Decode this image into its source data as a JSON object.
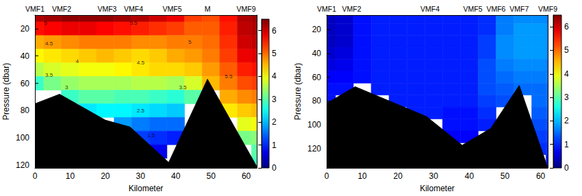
{
  "chart_data": [
    {
      "type": "contour",
      "x_label": "Kilometer",
      "y_label": "Pressure (dbar)",
      "xlim": [
        0,
        63
      ],
      "xticks": [
        0,
        10,
        20,
        30,
        40,
        50,
        60
      ],
      "ylim": [
        10,
        122
      ],
      "yticks": [
        20,
        40,
        60,
        80,
        100,
        120
      ],
      "stations": [
        {
          "name": "VMF1",
          "x": 0
        },
        {
          "name": "VMF2",
          "x": 7.6
        },
        {
          "name": "VMF3",
          "x": 20.5
        },
        {
          "name": "VMF4",
          "x": 28
        },
        {
          "name": "VMF5",
          "x": 39
        },
        {
          "name": "M",
          "x": 49
        },
        {
          "name": "VMF9",
          "x": 60
        }
      ],
      "seabed": {
        "x": [
          0,
          7,
          20,
          27,
          38,
          49,
          63
        ],
        "y": [
          75,
          68,
          87,
          92,
          118,
          57,
          121
        ]
      },
      "cells": {
        "x": [
          0,
          5,
          10,
          15,
          20,
          25,
          30,
          35,
          40,
          45,
          50,
          55,
          60,
          63
        ],
        "y": [
          10,
          20,
          30,
          40,
          50,
          60,
          70,
          80,
          90,
          100,
          110,
          120
        ],
        "values": [
          [
            6.2,
            6.3,
            6.4,
            6.4,
            6.4,
            6.3,
            6.2,
            6.0,
            5.8,
            5.3,
            5.2,
            5.6,
            6.2,
            6.3
          ],
          [
            5.6,
            5.7,
            5.8,
            5.8,
            5.7,
            5.6,
            5.5,
            5.4,
            5.3,
            5.1,
            5.1,
            5.5,
            6.1,
            6.2
          ],
          [
            4.6,
            4.7,
            4.8,
            4.9,
            4.9,
            4.9,
            4.8,
            4.8,
            4.9,
            4.9,
            5.0,
            5.4,
            6.0,
            6.1
          ],
          [
            4.1,
            4.2,
            4.3,
            4.4,
            4.5,
            4.4,
            4.3,
            4.4,
            4.6,
            4.7,
            4.9,
            5.3,
            5.8,
            5.9
          ],
          [
            3.6,
            3.8,
            3.9,
            4.0,
            4.0,
            4.1,
            4.2,
            4.3,
            4.3,
            4.4,
            4.7,
            5.1,
            5.5,
            5.6
          ],
          [
            2.8,
            3.2,
            3.4,
            3.5,
            3.5,
            3.5,
            3.6,
            3.6,
            3.5,
            3.8,
            4.5,
            4.9,
            5.2,
            5.3
          ],
          [
            null,
            null,
            2.8,
            3.0,
            3.0,
            2.9,
            2.9,
            2.8,
            2.7,
            3.0,
            null,
            4.6,
            4.8,
            4.9
          ],
          [
            null,
            null,
            null,
            2.3,
            2.4,
            2.4,
            2.3,
            2.2,
            2.1,
            null,
            null,
            4.2,
            4.4,
            4.5
          ],
          [
            null,
            null,
            null,
            null,
            null,
            1.8,
            1.6,
            1.5,
            1.5,
            null,
            null,
            null,
            3.9,
            4.0
          ],
          [
            null,
            null,
            null,
            null,
            null,
            null,
            1.2,
            1.1,
            1.0,
            null,
            null,
            null,
            3.2,
            3.3
          ],
          [
            null,
            null,
            null,
            null,
            null,
            null,
            null,
            0.7,
            null,
            null,
            null,
            null,
            null,
            3.0
          ],
          [
            null,
            null,
            null,
            null,
            null,
            null,
            null,
            null,
            null,
            null,
            null,
            null,
            null,
            2.8
          ]
        ]
      },
      "colorbar": {
        "range": [
          0,
          6.5
        ],
        "ticks": [
          0,
          1,
          2,
          3,
          4,
          5,
          6
        ]
      },
      "annotations": [
        {
          "text": "5",
          "x": 3,
          "y": 16
        },
        {
          "text": "4.5",
          "x": 4,
          "y": 31
        },
        {
          "text": "4",
          "x": 12,
          "y": 44
        },
        {
          "text": "3.5",
          "x": 4,
          "y": 54
        },
        {
          "text": "3",
          "x": 9,
          "y": 63
        },
        {
          "text": "5.5",
          "x": 28,
          "y": 16
        },
        {
          "text": "4.5",
          "x": 30,
          "y": 45
        },
        {
          "text": "3.5",
          "x": 42,
          "y": 63
        },
        {
          "text": "2.5",
          "x": 30,
          "y": 80
        },
        {
          "text": "1.5",
          "x": 33,
          "y": 98
        },
        {
          "text": "5",
          "x": 44,
          "y": 30
        },
        {
          "text": "5.5",
          "x": 55,
          "y": 55
        }
      ]
    },
    {
      "type": "contour",
      "x_label": "Kilometer",
      "y_label": "Pressure (dbar)",
      "xlim": [
        0,
        62
      ],
      "xticks": [
        0,
        10,
        20,
        30,
        40,
        50,
        60
      ],
      "ylim": [
        8,
        136
      ],
      "yticks": [
        20,
        40,
        60,
        80,
        100,
        120
      ],
      "stations": [
        {
          "name": "VMF1",
          "x": 0
        },
        {
          "name": "VMF2",
          "x": 7
        },
        {
          "name": "VMF4",
          "x": 29
        },
        {
          "name": "VMF5",
          "x": 41
        },
        {
          "name": "VMF6",
          "x": 47.5
        },
        {
          "name": "VMF7",
          "x": 54
        },
        {
          "name": "VMF9",
          "x": 62
        }
      ],
      "seabed": {
        "x": [
          0,
          8,
          28,
          38,
          46,
          54,
          62
        ],
        "y": [
          82,
          68,
          93,
          117,
          103,
          67,
          136
        ]
      },
      "cells": {
        "x": [
          0,
          5,
          10,
          15,
          20,
          25,
          30,
          35,
          40,
          45,
          50,
          55,
          60,
          63
        ],
        "y": [
          10,
          20,
          30,
          40,
          50,
          60,
          70,
          80,
          90,
          100,
          110,
          120,
          130
        ],
        "values": [
          [
            0.4,
            0.5,
            0.9,
            1.0,
            1.0,
            1.0,
            1.0,
            1.0,
            1.0,
            1.1,
            1.6,
            1.7,
            1.7,
            1.6
          ],
          [
            0.4,
            0.5,
            0.9,
            1.0,
            1.0,
            1.0,
            1.0,
            1.0,
            1.0,
            1.1,
            1.6,
            1.8,
            1.8,
            1.7
          ],
          [
            0.4,
            0.5,
            0.9,
            1.0,
            1.0,
            1.0,
            1.0,
            1.0,
            1.0,
            1.2,
            1.7,
            1.8,
            1.8,
            1.7
          ],
          [
            0.5,
            0.6,
            0.9,
            1.0,
            1.0,
            1.0,
            1.0,
            1.0,
            1.0,
            1.2,
            1.7,
            1.8,
            1.8,
            1.7
          ],
          [
            0.6,
            0.7,
            0.9,
            1.0,
            1.0,
            1.0,
            1.0,
            1.0,
            1.0,
            1.3,
            1.6,
            1.7,
            1.7,
            1.6
          ],
          [
            0.8,
            0.8,
            0.9,
            1.0,
            1.0,
            1.0,
            1.0,
            1.0,
            1.0,
            1.3,
            1.5,
            1.6,
            1.6,
            1.6
          ],
          [
            0.9,
            0.9,
            null,
            1.0,
            1.0,
            1.0,
            1.0,
            1.0,
            1.0,
            1.3,
            1.4,
            1.5,
            1.5,
            1.5
          ],
          [
            0.9,
            null,
            null,
            null,
            1.0,
            1.0,
            1.0,
            1.0,
            1.0,
            1.2,
            1.3,
            null,
            1.5,
            1.5
          ],
          [
            null,
            null,
            null,
            null,
            null,
            1.0,
            1.0,
            0.9,
            0.9,
            1.1,
            null,
            null,
            1.4,
            1.4
          ],
          [
            null,
            null,
            null,
            null,
            null,
            null,
            null,
            0.9,
            0.9,
            1.0,
            null,
            null,
            1.3,
            1.3
          ],
          [
            null,
            null,
            null,
            null,
            null,
            null,
            null,
            0.8,
            0.8,
            null,
            null,
            null,
            1.2,
            1.2
          ],
          [
            null,
            null,
            null,
            null,
            null,
            null,
            null,
            null,
            null,
            null,
            null,
            null,
            1.1,
            1.1
          ],
          [
            null,
            null,
            null,
            null,
            null,
            null,
            null,
            null,
            null,
            null,
            null,
            null,
            null,
            1.0
          ]
        ]
      },
      "colorbar": {
        "range": [
          0,
          6.5
        ],
        "ticks": [
          0,
          1,
          2,
          3,
          4,
          5,
          6
        ]
      }
    }
  ]
}
